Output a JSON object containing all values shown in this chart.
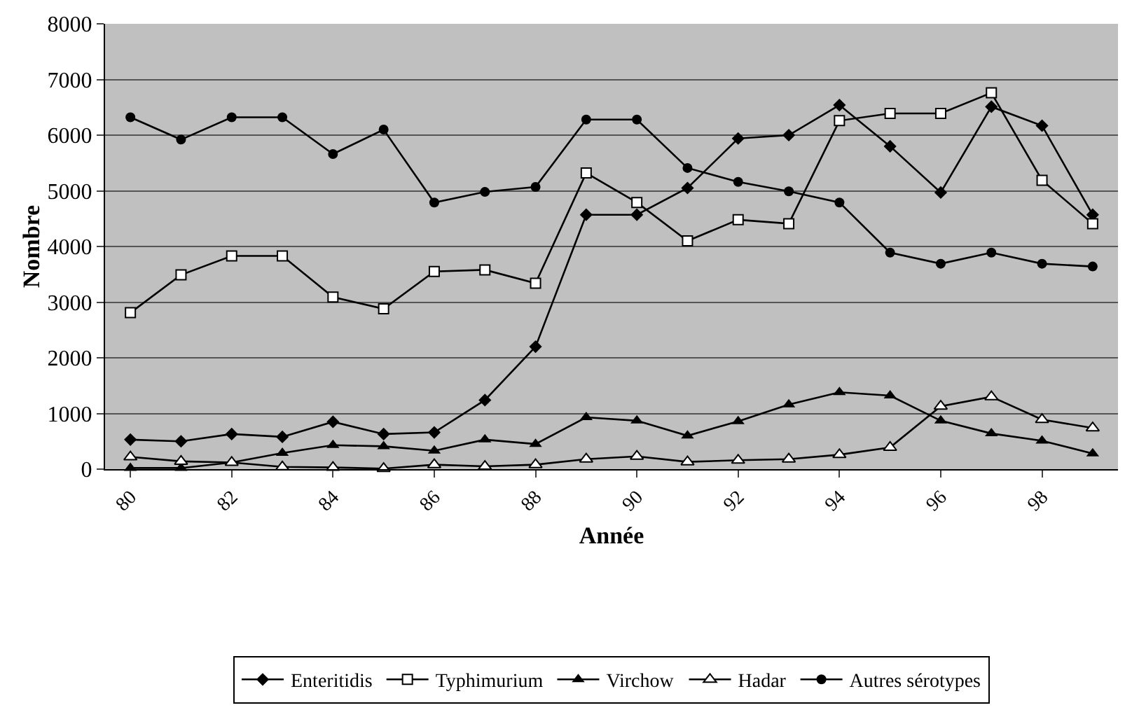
{
  "chart_data": {
    "type": "line",
    "xlabel": "Année",
    "ylabel": "Nombre",
    "categories": [
      "80",
      null,
      "82",
      null,
      "84",
      null,
      "86",
      null,
      "88",
      null,
      "90",
      null,
      "92",
      null,
      "94",
      null,
      "96",
      null,
      "98",
      null
    ],
    "ylim": [
      0,
      8000
    ],
    "yticks": [
      0,
      1000,
      2000,
      3000,
      4000,
      5000,
      6000,
      7000,
      8000
    ],
    "grid": "y",
    "legend": "bottom",
    "line_style": "solid",
    "series": [
      {
        "name": "Enteritidis",
        "color": "#000000",
        "marker": "diamond",
        "values": [
          530,
          500,
          630,
          580,
          850,
          630,
          660,
          1240,
          2200,
          4570,
          4570,
          5050,
          5940,
          6000,
          6540,
          5800,
          4970,
          6510,
          6170,
          4570
        ]
      },
      {
        "name": "Typhimurium",
        "color": "#000000",
        "marker": "square-open",
        "values": [
          2810,
          3490,
          3830,
          3830,
          3090,
          2880,
          3550,
          3580,
          3340,
          5320,
          4790,
          4100,
          4480,
          4410,
          6260,
          6390,
          6390,
          6760,
          5190,
          4410
        ]
      },
      {
        "name": "Virchow",
        "color": "#000000",
        "marker": "triangle",
        "values": [
          20,
          20,
          120,
          290,
          430,
          410,
          330,
          530,
          450,
          930,
          870,
          600,
          860,
          1160,
          1380,
          1320,
          870,
          640,
          510,
          280
        ]
      },
      {
        "name": "Hadar",
        "color": "#000000",
        "marker": "triangle-open",
        "values": [
          220,
          140,
          120,
          40,
          30,
          10,
          80,
          50,
          80,
          180,
          230,
          130,
          160,
          180,
          260,
          390,
          1130,
          1300,
          890,
          740
        ]
      },
      {
        "name": "Autres sérotypes",
        "color": "#000000",
        "marker": "circle",
        "values": [
          6320,
          5920,
          6320,
          6320,
          5660,
          6100,
          4790,
          4980,
          5070,
          6280,
          6280,
          5410,
          5160,
          4990,
          4790,
          3890,
          3690,
          3890,
          3690,
          3640
        ]
      }
    ]
  }
}
